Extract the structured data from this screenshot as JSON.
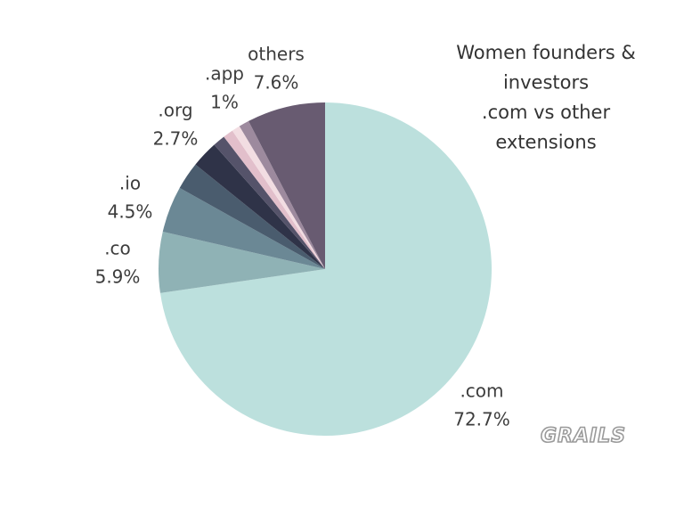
{
  "chart_data": {
    "type": "pie",
    "title": [
      "Women founders &",
      "investors",
      ".com vs other",
      "extensions"
    ],
    "categories": [
      ".com",
      ".co",
      ".io",
      ".org",
      null,
      null,
      ".app",
      null,
      null,
      "others"
    ],
    "values": [
      72.7,
      5.9,
      4.5,
      2.7,
      2.6,
      1.2,
      1,
      0.8,
      1.0,
      7.6
    ],
    "value_labels": [
      "72.7%",
      "5.9%",
      "4.5%",
      "2.7%",
      null,
      null,
      "1%",
      null,
      null,
      "7.6%"
    ],
    "colors": [
      "#bce0dd",
      "#8fb2b5",
      "#6b8895",
      "#4a5c6e",
      "#2f3348",
      "#55536a",
      "#e2bfcb",
      "#f2dde2",
      "#9d8a9e",
      "#685b71"
    ],
    "watermark": "GRAILS"
  }
}
